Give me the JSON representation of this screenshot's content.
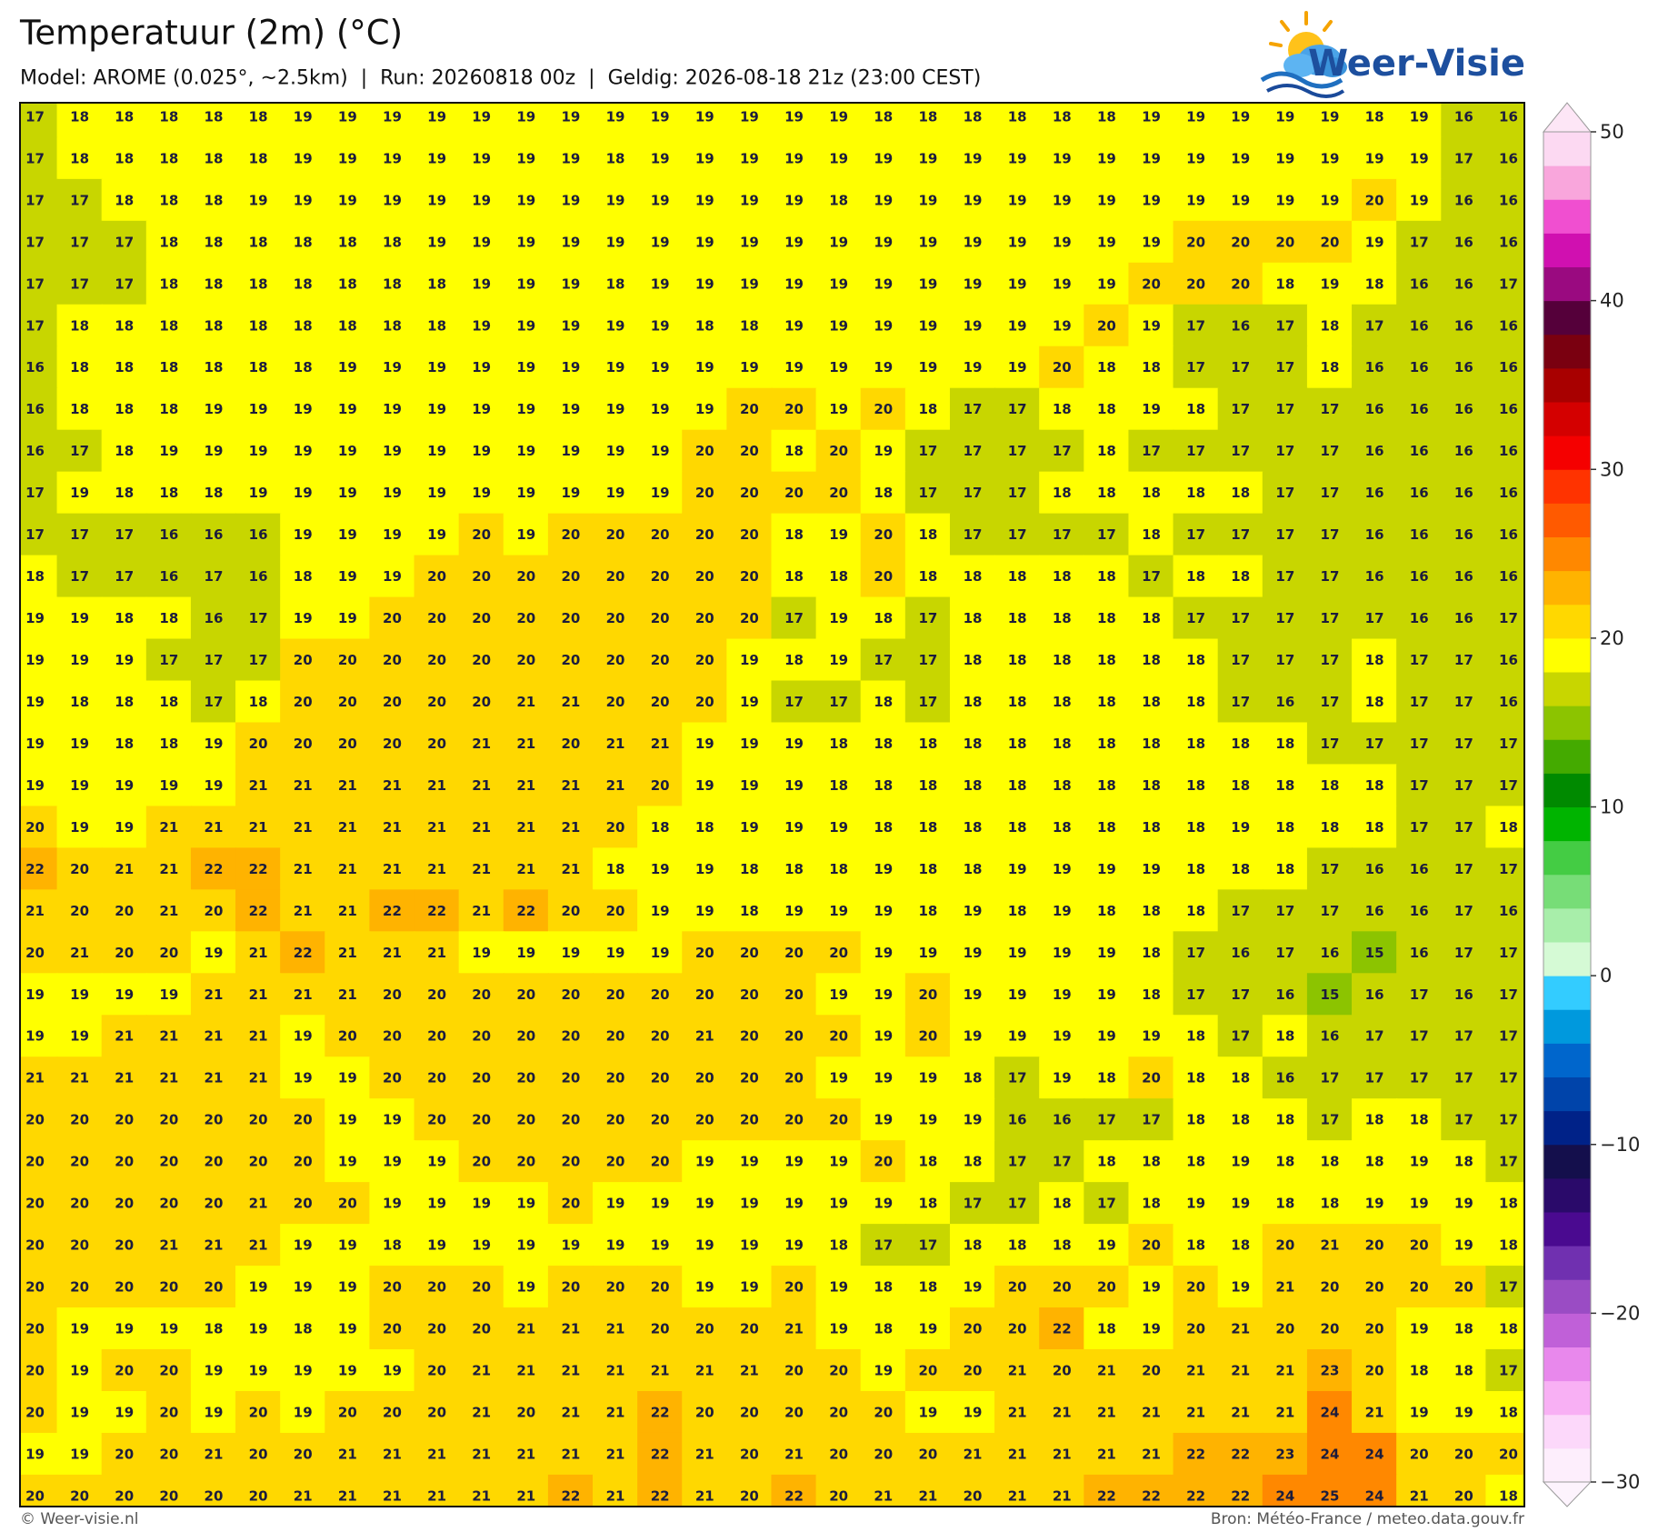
{
  "header": {
    "title": "Temperatuur (2m) (°C)",
    "subtitle": "Model: AROME (0.025°, ~2.5km)  |  Run: 20260818 00z  |  Geldig: 2026-08-18 21z (23:00 CEST)",
    "logo": "Weer-Visie"
  },
  "map": {
    "rows": [
      [
        17,
        18,
        18,
        18,
        18,
        18,
        19,
        19,
        19,
        19,
        19,
        19,
        19,
        19,
        19,
        19,
        19,
        19,
        19,
        18,
        18,
        18,
        18,
        18,
        18,
        19,
        19,
        19,
        19,
        19,
        18,
        19,
        16,
        16
      ],
      [
        17,
        18,
        18,
        18,
        18,
        18,
        19,
        19,
        19,
        19,
        19,
        19,
        19,
        18,
        19,
        19,
        19,
        19,
        19,
        19,
        19,
        19,
        19,
        19,
        19,
        19,
        19,
        19,
        19,
        19,
        19,
        19,
        17,
        16
      ],
      [
        17,
        17,
        18,
        18,
        18,
        19,
        19,
        19,
        19,
        19,
        19,
        19,
        19,
        19,
        19,
        19,
        19,
        19,
        18,
        19,
        19,
        19,
        19,
        19,
        19,
        19,
        19,
        19,
        19,
        19,
        20,
        19,
        16,
        16
      ],
      [
        17,
        17,
        17,
        18,
        18,
        18,
        18,
        18,
        18,
        19,
        19,
        19,
        19,
        19,
        19,
        19,
        19,
        19,
        19,
        19,
        19,
        19,
        19,
        19,
        19,
        19,
        20,
        20,
        20,
        20,
        19,
        17,
        16,
        16
      ],
      [
        17,
        17,
        17,
        18,
        18,
        18,
        18,
        18,
        18,
        18,
        19,
        19,
        19,
        18,
        19,
        19,
        19,
        19,
        19,
        19,
        19,
        19,
        19,
        19,
        19,
        20,
        20,
        20,
        18,
        19,
        18,
        16,
        16,
        17
      ],
      [
        17,
        18,
        18,
        18,
        18,
        18,
        18,
        18,
        18,
        18,
        19,
        19,
        19,
        19,
        19,
        18,
        18,
        19,
        19,
        19,
        19,
        19,
        19,
        19,
        20,
        19,
        17,
        16,
        17,
        18,
        17,
        16,
        16,
        16
      ],
      [
        16,
        18,
        18,
        18,
        18,
        18,
        18,
        19,
        19,
        19,
        19,
        19,
        19,
        19,
        19,
        19,
        19,
        19,
        19,
        19,
        19,
        19,
        19,
        20,
        18,
        18,
        17,
        17,
        17,
        18,
        16,
        16,
        16,
        16
      ],
      [
        16,
        18,
        18,
        18,
        19,
        19,
        19,
        19,
        19,
        19,
        19,
        19,
        19,
        19,
        19,
        19,
        20,
        20,
        19,
        20,
        18,
        17,
        17,
        18,
        18,
        19,
        18,
        17,
        17,
        17,
        16,
        16,
        16,
        16
      ],
      [
        16,
        17,
        18,
        19,
        19,
        19,
        19,
        19,
        19,
        19,
        19,
        19,
        19,
        19,
        19,
        20,
        20,
        18,
        20,
        19,
        17,
        17,
        17,
        17,
        18,
        17,
        17,
        17,
        17,
        17,
        16,
        16,
        16,
        16
      ],
      [
        17,
        19,
        18,
        18,
        18,
        19,
        19,
        19,
        19,
        19,
        19,
        19,
        19,
        19,
        19,
        20,
        20,
        20,
        20,
        18,
        17,
        17,
        17,
        18,
        18,
        18,
        18,
        18,
        17,
        17,
        16,
        16,
        16,
        16
      ],
      [
        17,
        17,
        17,
        16,
        16,
        16,
        19,
        19,
        19,
        19,
        20,
        19,
        20,
        20,
        20,
        20,
        20,
        18,
        19,
        20,
        18,
        17,
        17,
        17,
        17,
        18,
        17,
        17,
        17,
        17,
        16,
        16,
        16,
        16
      ],
      [
        18,
        17,
        17,
        16,
        17,
        16,
        18,
        19,
        19,
        20,
        20,
        20,
        20,
        20,
        20,
        20,
        20,
        18,
        18,
        20,
        18,
        18,
        18,
        18,
        18,
        17,
        18,
        18,
        17,
        17,
        16,
        16,
        16,
        16
      ],
      [
        19,
        19,
        18,
        18,
        16,
        17,
        19,
        19,
        20,
        20,
        20,
        20,
        20,
        20,
        20,
        20,
        20,
        17,
        19,
        18,
        17,
        18,
        18,
        18,
        18,
        18,
        17,
        17,
        17,
        17,
        17,
        16,
        16,
        17
      ],
      [
        19,
        19,
        19,
        17,
        17,
        17,
        20,
        20,
        20,
        20,
        20,
        20,
        20,
        20,
        20,
        20,
        19,
        18,
        19,
        17,
        17,
        18,
        18,
        18,
        18,
        18,
        18,
        17,
        17,
        17,
        18,
        17,
        17,
        16
      ],
      [
        19,
        18,
        18,
        18,
        17,
        18,
        20,
        20,
        20,
        20,
        20,
        21,
        21,
        20,
        20,
        20,
        19,
        17,
        17,
        18,
        17,
        18,
        18,
        18,
        18,
        18,
        18,
        17,
        16,
        17,
        18,
        17,
        17,
        16
      ],
      [
        19,
        19,
        18,
        18,
        19,
        20,
        20,
        20,
        20,
        20,
        21,
        21,
        20,
        21,
        21,
        19,
        19,
        19,
        18,
        18,
        18,
        18,
        18,
        18,
        18,
        18,
        18,
        18,
        18,
        17,
        17,
        17,
        17,
        17
      ],
      [
        19,
        19,
        19,
        19,
        19,
        21,
        21,
        21,
        21,
        21,
        21,
        21,
        21,
        21,
        20,
        19,
        19,
        19,
        18,
        18,
        18,
        18,
        18,
        18,
        18,
        18,
        18,
        18,
        18,
        18,
        18,
        17,
        17,
        17
      ],
      [
        20,
        19,
        19,
        21,
        21,
        21,
        21,
        21,
        21,
        21,
        21,
        21,
        21,
        20,
        18,
        18,
        19,
        19,
        19,
        18,
        18,
        18,
        18,
        18,
        18,
        18,
        18,
        19,
        18,
        18,
        18,
        17,
        17,
        18
      ],
      [
        22,
        20,
        21,
        21,
        22,
        22,
        21,
        21,
        21,
        21,
        21,
        21,
        21,
        18,
        19,
        19,
        18,
        18,
        18,
        19,
        18,
        18,
        19,
        19,
        19,
        19,
        18,
        18,
        18,
        17,
        16,
        16,
        17,
        17
      ],
      [
        21,
        20,
        20,
        21,
        20,
        22,
        21,
        21,
        22,
        22,
        21,
        22,
        20,
        20,
        19,
        19,
        18,
        19,
        19,
        19,
        18,
        19,
        18,
        19,
        18,
        18,
        18,
        17,
        17,
        17,
        16,
        16,
        17,
        16
      ],
      [
        20,
        21,
        20,
        20,
        19,
        21,
        22,
        21,
        21,
        21,
        19,
        19,
        19,
        19,
        19,
        20,
        20,
        20,
        20,
        19,
        19,
        19,
        19,
        19,
        19,
        18,
        17,
        16,
        17,
        16,
        15,
        16,
        17,
        17
      ],
      [
        19,
        19,
        19,
        19,
        21,
        21,
        21,
        21,
        20,
        20,
        20,
        20,
        20,
        20,
        20,
        20,
        20,
        20,
        19,
        19,
        20,
        19,
        19,
        19,
        19,
        18,
        17,
        17,
        16,
        15,
        16,
        17,
        16,
        17
      ],
      [
        19,
        19,
        21,
        21,
        21,
        21,
        19,
        20,
        20,
        20,
        20,
        20,
        20,
        20,
        20,
        21,
        20,
        20,
        20,
        19,
        20,
        19,
        19,
        19,
        19,
        19,
        18,
        17,
        18,
        16,
        17,
        17,
        17,
        17
      ],
      [
        21,
        21,
        21,
        21,
        21,
        21,
        19,
        19,
        20,
        20,
        20,
        20,
        20,
        20,
        20,
        20,
        20,
        20,
        19,
        19,
        19,
        18,
        17,
        19,
        18,
        20,
        18,
        18,
        16,
        17,
        17,
        17,
        17,
        17
      ],
      [
        20,
        20,
        20,
        20,
        20,
        20,
        20,
        19,
        19,
        20,
        20,
        20,
        20,
        20,
        20,
        20,
        20,
        20,
        20,
        19,
        19,
        19,
        16,
        16,
        17,
        17,
        18,
        18,
        18,
        17,
        18,
        18,
        17,
        17
      ],
      [
        20,
        20,
        20,
        20,
        20,
        20,
        20,
        19,
        19,
        19,
        20,
        20,
        20,
        20,
        20,
        19,
        19,
        19,
        19,
        20,
        18,
        18,
        17,
        17,
        18,
        18,
        18,
        19,
        18,
        18,
        18,
        19,
        18,
        17
      ],
      [
        20,
        20,
        20,
        20,
        20,
        21,
        20,
        20,
        19,
        19,
        19,
        19,
        20,
        19,
        19,
        19,
        19,
        19,
        19,
        19,
        18,
        17,
        17,
        18,
        17,
        18,
        19,
        19,
        18,
        18,
        19,
        19,
        19,
        18
      ],
      [
        20,
        20,
        20,
        21,
        21,
        21,
        19,
        19,
        18,
        19,
        19,
        19,
        19,
        19,
        19,
        19,
        19,
        19,
        18,
        17,
        17,
        18,
        18,
        18,
        19,
        20,
        18,
        18,
        20,
        21,
        20,
        20,
        19,
        18
      ],
      [
        20,
        20,
        20,
        20,
        20,
        19,
        19,
        19,
        20,
        20,
        20,
        19,
        20,
        20,
        20,
        19,
        19,
        20,
        19,
        18,
        18,
        19,
        20,
        20,
        20,
        19,
        20,
        19,
        21,
        20,
        20,
        20,
        20,
        17
      ],
      [
        20,
        19,
        19,
        19,
        18,
        19,
        18,
        19,
        20,
        20,
        20,
        21,
        21,
        21,
        20,
        20,
        20,
        21,
        19,
        18,
        19,
        20,
        20,
        22,
        18,
        19,
        20,
        21,
        20,
        20,
        20,
        19,
        18,
        18
      ],
      [
        20,
        19,
        20,
        20,
        19,
        19,
        19,
        19,
        19,
        20,
        21,
        21,
        21,
        21,
        21,
        21,
        21,
        20,
        20,
        19,
        20,
        20,
        21,
        20,
        21,
        20,
        21,
        21,
        21,
        23,
        20,
        18,
        18,
        17
      ],
      [
        20,
        19,
        19,
        20,
        19,
        20,
        19,
        20,
        20,
        20,
        21,
        20,
        21,
        21,
        22,
        20,
        20,
        20,
        20,
        20,
        19,
        19,
        21,
        21,
        21,
        21,
        21,
        21,
        21,
        24,
        21,
        19,
        19,
        18
      ],
      [
        19,
        19,
        20,
        20,
        21,
        20,
        20,
        21,
        21,
        21,
        21,
        21,
        21,
        21,
        22,
        21,
        20,
        21,
        20,
        20,
        20,
        21,
        21,
        21,
        21,
        21,
        22,
        22,
        23,
        24,
        24,
        20,
        20,
        20
      ],
      [
        20,
        20,
        20,
        20,
        20,
        20,
        21,
        21,
        21,
        21,
        21,
        21,
        22,
        21,
        22,
        21,
        20,
        22,
        20,
        21,
        21,
        20,
        21,
        21,
        22,
        22,
        22,
        22,
        24,
        25,
        24,
        21,
        20,
        18
      ]
    ]
  },
  "colorbar": {
    "lim": [
      -30,
      50
    ],
    "ticks": [
      {
        "value": -30,
        "label": "−30"
      },
      {
        "value": -20,
        "label": "−20"
      },
      {
        "value": -10,
        "label": "−10"
      },
      0,
      10,
      20,
      30,
      40,
      50
    ],
    "colors": [
      "#fdeefc",
      "#fcd8fa",
      "#f8b0f4",
      "#e888ec",
      "#c060d8",
      "#9a4cc4",
      "#7030b0",
      "#4a0a90",
      "#2a0a6a",
      "#140f4c",
      "#002288",
      "#0044aa",
      "#0066cc",
      "#0099dd",
      "#33ccff",
      "#d5fad5",
      "#a8eeaa",
      "#77dd77",
      "#44cc44",
      "#00b400",
      "#008a00",
      "#44aa00",
      "#8cc400",
      "#c8d600",
      "#ffff00",
      "#ffd800",
      "#ffb300",
      "#ff8800",
      "#ff5a00",
      "#ff3300",
      "#f50000",
      "#d40000",
      "#a80000",
      "#7a0010",
      "#55003a",
      "#9a0a80",
      "#d010b0",
      "#f04fd0",
      "#f9a6dc",
      "#fcd9f2"
    ],
    "under_color": "#fdf3fd",
    "over_color": "#fde6f6"
  },
  "footer": {
    "left": "© Weer-visie.nl",
    "right": "Bron: Météo-France / meteo.data.gouv.fr"
  }
}
